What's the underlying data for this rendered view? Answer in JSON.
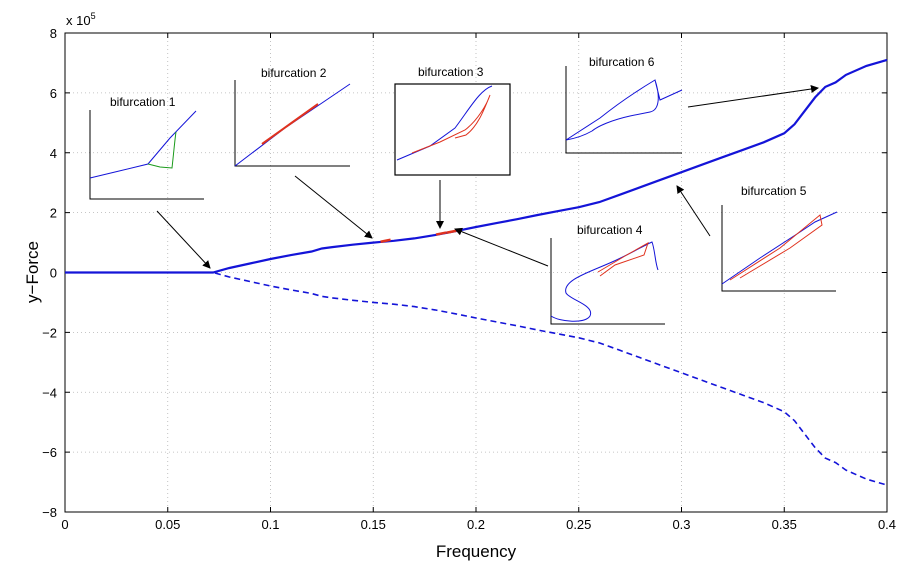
{
  "chart_data": {
    "type": "line",
    "xlabel": "Frequency",
    "ylabel": "y−Force",
    "y_multiplier_label": "x 10",
    "y_multiplier_exponent": "5",
    "xlim": [
      0,
      0.4
    ],
    "ylim": [
      -8,
      8
    ],
    "x_ticks": [
      0,
      0.05,
      0.1,
      0.15,
      0.2,
      0.25,
      0.3,
      0.35,
      0.4
    ],
    "x_tick_labels": [
      "0",
      "0.05",
      "0.1",
      "0.15",
      "0.2",
      "0.25",
      "0.3",
      "0.35",
      "0.4"
    ],
    "y_ticks": [
      -8,
      -6,
      -4,
      -2,
      0,
      2,
      4,
      6,
      8
    ],
    "y_tick_labels": [
      "−8",
      "−6",
      "−4",
      "−2",
      "0",
      "2",
      "4",
      "6",
      "8"
    ],
    "grid": true,
    "colors": {
      "main": "#1414d8",
      "branch_red": "#e0321e",
      "branch_green": "#1a9a1a"
    },
    "series": [
      {
        "style": "solid",
        "x": [
          0,
          0.02,
          0.04,
          0.06,
          0.07,
          0.072,
          0.08,
          0.09,
          0.1,
          0.11,
          0.12,
          0.125,
          0.13,
          0.14,
          0.15,
          0.16,
          0.17,
          0.18,
          0.19,
          0.2,
          0.21,
          0.22,
          0.23,
          0.24,
          0.25,
          0.26,
          0.27,
          0.28,
          0.29,
          0.3,
          0.31,
          0.32,
          0.33,
          0.34,
          0.35,
          0.355,
          0.36,
          0.365,
          0.37,
          0.375,
          0.38,
          0.39,
          0.4
        ],
        "y": [
          0,
          0,
          0,
          0,
          0,
          0,
          0.15,
          0.3,
          0.45,
          0.58,
          0.7,
          0.8,
          0.85,
          0.93,
          1.0,
          1.06,
          1.14,
          1.25,
          1.38,
          1.52,
          1.65,
          1.78,
          1.92,
          2.05,
          2.18,
          2.35,
          2.6,
          2.85,
          3.1,
          3.35,
          3.6,
          3.85,
          4.1,
          4.35,
          4.65,
          4.95,
          5.4,
          5.85,
          6.2,
          6.35,
          6.6,
          6.9,
          7.1
        ]
      },
      {
        "style": "dashed",
        "x": [
          0,
          0.02,
          0.04,
          0.06,
          0.07,
          0.072,
          0.08,
          0.09,
          0.1,
          0.11,
          0.12,
          0.125,
          0.13,
          0.14,
          0.15,
          0.16,
          0.17,
          0.18,
          0.19,
          0.2,
          0.21,
          0.22,
          0.23,
          0.24,
          0.25,
          0.26,
          0.27,
          0.28,
          0.29,
          0.3,
          0.31,
          0.32,
          0.33,
          0.34,
          0.35,
          0.355,
          0.36,
          0.365,
          0.37,
          0.375,
          0.38,
          0.39,
          0.4
        ],
        "y": [
          0,
          0,
          0,
          0,
          0,
          0,
          -0.15,
          -0.3,
          -0.45,
          -0.58,
          -0.7,
          -0.8,
          -0.85,
          -0.93,
          -1.0,
          -1.06,
          -1.14,
          -1.25,
          -1.38,
          -1.52,
          -1.65,
          -1.78,
          -1.92,
          -2.05,
          -2.18,
          -2.35,
          -2.6,
          -2.85,
          -3.1,
          -3.35,
          -3.6,
          -3.85,
          -4.1,
          -4.35,
          -4.65,
          -4.95,
          -5.4,
          -5.85,
          -6.2,
          -6.35,
          -6.6,
          -6.9,
          -7.1
        ]
      }
    ],
    "bifurcation_points": [
      {
        "x": 0.156,
        "y": 1.06
      },
      {
        "x": 0.183,
        "y": 1.3
      },
      {
        "x": 0.188,
        "y": 1.36
      }
    ],
    "annotations": [
      "bifurcation 1",
      "bifurcation 2",
      "bifurcation 3",
      "bifurcation 4",
      "bifurcation 5",
      "bifurcation 6"
    ]
  }
}
